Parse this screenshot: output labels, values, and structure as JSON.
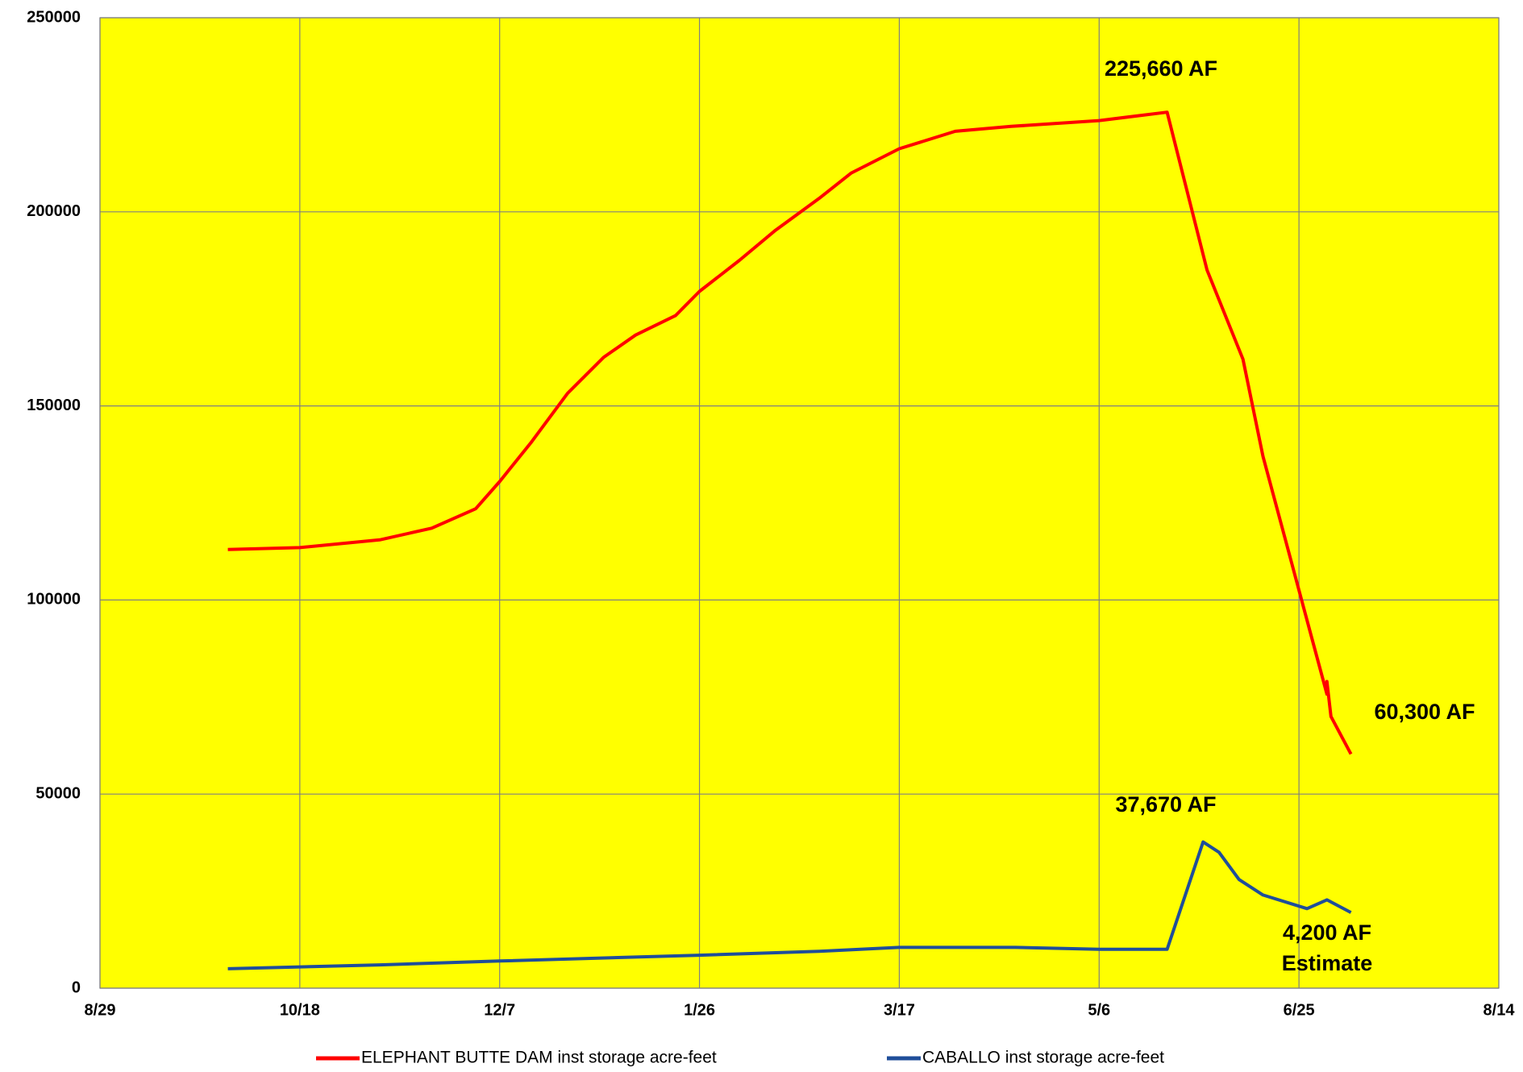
{
  "chart_data": {
    "type": "line",
    "background": "#ffff00",
    "grid": true,
    "xlim": [
      "8/29",
      "8/14"
    ],
    "xticks": [
      "8/29",
      "10/18",
      "12/7",
      "1/26",
      "3/17",
      "5/6",
      "6/25",
      "8/14"
    ],
    "ylim": [
      0,
      250000
    ],
    "yticks": [
      0,
      50000,
      100000,
      150000,
      200000,
      250000
    ],
    "series": [
      {
        "name": "ELEPHANT BUTTE DAM inst storage acre-feet",
        "color": "#ff0000",
        "x": [
          "9/30",
          "10/18",
          "11/7",
          "11/20",
          "12/1",
          "12/7",
          "12/15",
          "12/24",
          "1/2",
          "1/10",
          "1/20",
          "1/26",
          "2/5",
          "2/14",
          "2/25",
          "3/5",
          "3/17",
          "3/31",
          "4/14",
          "5/6",
          "5/23",
          "6/2",
          "6/11",
          "6/16",
          "6/22",
          "6/28",
          "7/2",
          "7/2",
          "7/3",
          "7/8"
        ],
        "values": [
          113000,
          113500,
          115500,
          118500,
          123500,
          130500,
          140750,
          153250,
          162500,
          168250,
          173250,
          179500,
          187500,
          195250,
          203500,
          210000,
          216250,
          220750,
          222000,
          223500,
          225660,
          185000,
          162000,
          137000,
          114000,
          91000,
          75750,
          79000,
          70000,
          60300
        ]
      },
      {
        "name": "CABALLO inst storage acre-feet",
        "color": "#1f4e9a",
        "x": [
          "9/30",
          "11/7",
          "12/7",
          "1/26",
          "2/25",
          "3/17",
          "4/15",
          "5/6",
          "5/23",
          "6/1",
          "6/5",
          "6/10",
          "6/16",
          "6/27",
          "7/2",
          "7/8"
        ],
        "values": [
          5000,
          6000,
          7000,
          8500,
          9500,
          10500,
          10500,
          10000,
          10000,
          37670,
          35000,
          28000,
          24000,
          20500,
          22750,
          19500
        ]
      }
    ],
    "annotations": [
      "225,660 AF",
      "60,300 AF",
      "37,670 AF",
      "4,200 AF",
      "Estimate"
    ]
  }
}
